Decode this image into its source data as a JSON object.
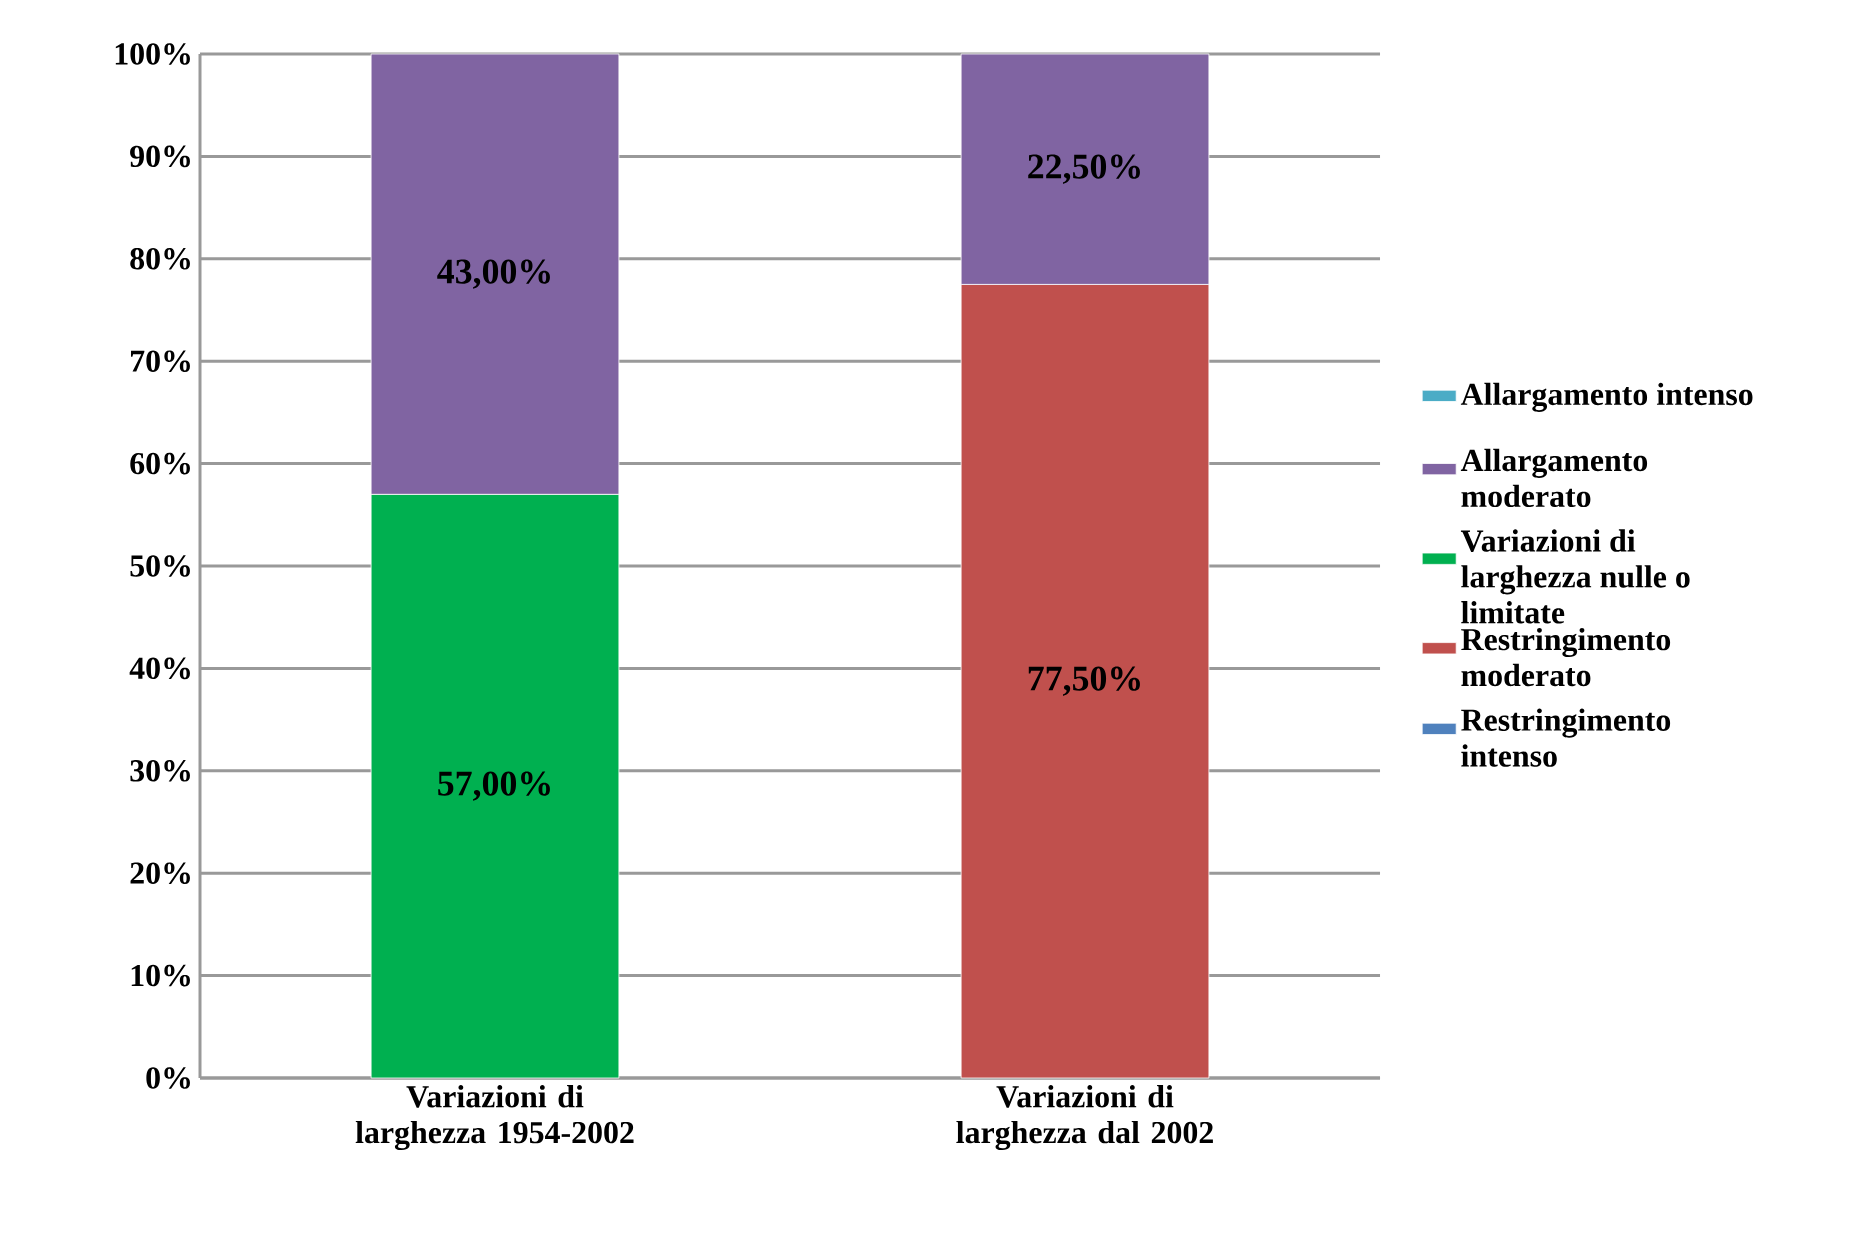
{
  "chart_data": {
    "type": "bar",
    "stacked": true,
    "categories": [
      "Variazioni di larghezza 1954-2002",
      "Variazioni di larghezza dal 2002"
    ],
    "series": [
      {
        "name": "Restringimento intenso",
        "color": "#4f81bd",
        "values": [
          null,
          null
        ],
        "value_labels": [
          null,
          null
        ]
      },
      {
        "name": "Restringimento moderato",
        "color": "#c0504d",
        "values": [
          null,
          77.5
        ],
        "value_labels": [
          null,
          "77,50%"
        ]
      },
      {
        "name": "Variazioni di larghezza nulle o limitate",
        "color": "#00b050",
        "values": [
          57,
          null
        ],
        "value_labels": [
          "57,00%",
          null
        ]
      },
      {
        "name": "Allargamento moderato",
        "color": "#8064a2",
        "values": [
          43,
          22.5
        ],
        "value_labels": [
          "43,00%",
          "22,50%"
        ]
      },
      {
        "name": "Allargamento intenso",
        "color": "#4bacc6",
        "values": [
          null,
          null
        ],
        "value_labels": [
          null,
          null
        ]
      }
    ],
    "ylim": [
      0,
      100
    ],
    "yticks": [
      {
        "value": 0,
        "label": "0%"
      },
      {
        "value": 10,
        "label": "10%"
      },
      {
        "value": 20,
        "label": "20%"
      },
      {
        "value": 30,
        "label": "30%"
      },
      {
        "value": 40,
        "label": "40%"
      },
      {
        "value": 50,
        "label": "50%"
      },
      {
        "value": 60,
        "label": "60%"
      },
      {
        "value": 70,
        "label": "70%"
      },
      {
        "value": 80,
        "label": "80%"
      },
      {
        "value": 90,
        "label": "90%"
      },
      {
        "value": 100,
        "label": "100%"
      }
    ],
    "grid": "y",
    "legend": "right"
  }
}
